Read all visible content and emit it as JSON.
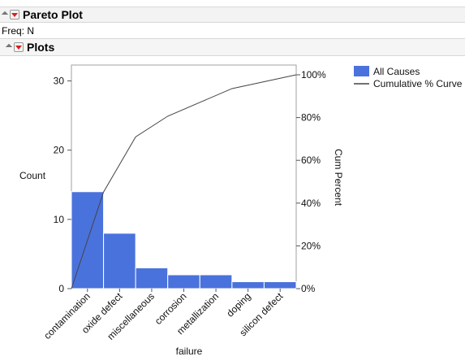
{
  "report": {
    "title": "Pareto Plot",
    "freq_label": "Freq: N",
    "plots_title": "Plots"
  },
  "chart_data": {
    "type": "bar",
    "categories": [
      "contamination",
      "oxide defect",
      "miscellaneous",
      "corrosion",
      "metallization",
      "doping",
      "silicon defect"
    ],
    "series": [
      {
        "name": "All Causes",
        "values": [
          14,
          8,
          3,
          2,
          2,
          1,
          1
        ]
      }
    ],
    "cumulative_curve": {
      "name": "Cumulative % Curve",
      "values": [
        0,
        45.16,
        70.97,
        80.65,
        87.1,
        93.55,
        96.77,
        100
      ]
    },
    "xlabel": "failure",
    "ylabel": "Count",
    "y2label": "Cum Percent",
    "ylim": [
      0,
      31
    ],
    "yticks": [
      0,
      10,
      20,
      30
    ],
    "y2ticks": [
      "0%",
      "20%",
      "40%",
      "60%",
      "80%",
      "100%"
    ],
    "grid": false,
    "legend_position": "top-right"
  },
  "colors": {
    "bar": "#4a72dc",
    "curve": "#444444"
  }
}
